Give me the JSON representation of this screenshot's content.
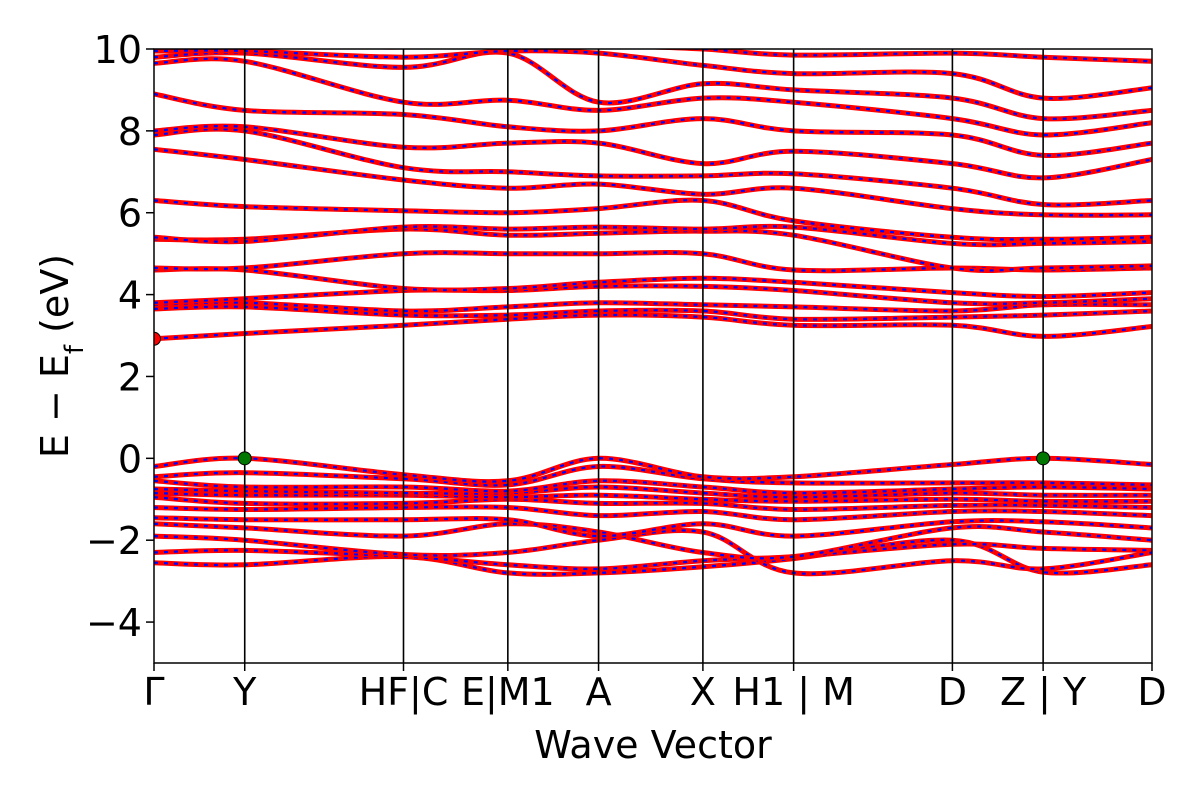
{
  "chart_data": {
    "type": "line",
    "title": "",
    "xlabel": "Wave Vector",
    "ylabel": "E − Ef (eV)",
    "ylim": [
      -5,
      10
    ],
    "xlim": [
      0,
      11
    ],
    "grid": false,
    "legend": "none",
    "y_ticks": [
      -4,
      -2,
      0,
      2,
      4,
      6,
      8,
      10
    ],
    "y_tick_labels": [
      "−4",
      "−2",
      "0",
      "2",
      "4",
      "6",
      "8",
      "10"
    ],
    "high_symmetry_points": [
      {
        "x": 0.0,
        "label": "Γ"
      },
      {
        "x": 1.0,
        "label": "Y"
      },
      {
        "x": 2.75,
        "label": "HF"
      },
      {
        "x": 2.75,
        "label": "C"
      },
      {
        "x": 3.9,
        "label": "E"
      },
      {
        "x": 3.9,
        "label": "M1"
      },
      {
        "x": 4.9,
        "label": "A"
      },
      {
        "x": 6.05,
        "label": "X"
      },
      {
        "x": 7.05,
        "label": "H1"
      },
      {
        "x": 7.05,
        "label": "M"
      },
      {
        "x": 8.8,
        "label": "D"
      },
      {
        "x": 9.8,
        "label": "Z"
      },
      {
        "x": 9.8,
        "label": "Y"
      },
      {
        "x": 11.0,
        "label": "D"
      }
    ],
    "tick_text": [
      {
        "x": 0.0,
        "text": "Γ"
      },
      {
        "x": 1.0,
        "text": "Y"
      },
      {
        "x": 2.75,
        "text": "HF|C"
      },
      {
        "x": 3.9,
        "text": "E|M1"
      },
      {
        "x": 4.9,
        "text": "A"
      },
      {
        "x": 6.05,
        "text": "X"
      },
      {
        "x": 7.05,
        "text": "H1 | M"
      },
      {
        "x": 8.8,
        "text": "D"
      },
      {
        "x": 9.8,
        "text": "Z | Y"
      },
      {
        "x": 11.0,
        "text": "D"
      }
    ],
    "band_colors": {
      "line": "#ff0000",
      "dash": "#0000ff"
    },
    "points": [
      {
        "x": 0.0,
        "y": 2.92,
        "kind": "cbm",
        "color": "#ff0000"
      },
      {
        "x": 1.0,
        "y": 0.0,
        "kind": "vbm",
        "color": "#007700"
      },
      {
        "x": 9.8,
        "y": 0.0,
        "kind": "vbm",
        "color": "#007700"
      }
    ],
    "vertices": [
      0,
      1.0,
      2.75,
      3.9,
      4.9,
      6.05,
      7.05,
      8.8,
      9.8,
      11.0
    ],
    "series": [
      {
        "values": [
          -2.55,
          -2.6,
          -2.4,
          -2.8,
          -2.8,
          -2.65,
          -2.45,
          -2.0,
          -2.78,
          -2.6
        ]
      },
      {
        "values": [
          -2.3,
          -2.25,
          -2.4,
          -2.6,
          -2.7,
          -2.5,
          -2.4,
          -2.1,
          -2.2,
          -2.25
        ]
      },
      {
        "values": [
          -1.9,
          -2.0,
          -2.35,
          -2.3,
          -2.0,
          -1.8,
          -2.8,
          -2.5,
          -2.7,
          -2.3
        ]
      },
      {
        "values": [
          -1.6,
          -1.7,
          -1.9,
          -1.6,
          -1.8,
          -2.3,
          -2.4,
          -1.7,
          -1.8,
          -2.0
        ]
      },
      {
        "values": [
          -1.45,
          -1.5,
          -1.5,
          -1.5,
          -1.9,
          -1.6,
          -1.9,
          -1.55,
          -1.55,
          -1.7
        ]
      },
      {
        "values": [
          -1.2,
          -1.25,
          -1.2,
          -1.2,
          -1.4,
          -1.3,
          -1.5,
          -1.3,
          -1.3,
          -1.4
        ]
      },
      {
        "values": [
          -0.95,
          -1.1,
          -1.1,
          -1.0,
          -1.1,
          -1.1,
          -1.25,
          -1.15,
          -1.15,
          -1.2
        ]
      },
      {
        "values": [
          -0.85,
          -0.9,
          -0.9,
          -0.95,
          -0.9,
          -1.0,
          -1.05,
          -1.0,
          -1.05,
          -1.05
        ]
      },
      {
        "values": [
          -0.75,
          -0.8,
          -0.85,
          -0.85,
          -0.7,
          -0.85,
          -0.95,
          -0.85,
          -0.9,
          -0.9
        ]
      },
      {
        "values": [
          -0.55,
          -0.7,
          -0.7,
          -0.8,
          -0.55,
          -0.7,
          -0.85,
          -0.75,
          -0.7,
          -0.75
        ]
      },
      {
        "values": [
          -0.45,
          -0.35,
          -0.5,
          -0.65,
          -0.2,
          -0.5,
          -0.6,
          -0.6,
          -0.6,
          -0.65
        ]
      },
      {
        "values": [
          -0.2,
          0.0,
          -0.4,
          -0.55,
          0.0,
          -0.45,
          -0.45,
          -0.15,
          0.0,
          -0.15
        ]
      },
      {
        "values": [
          2.92,
          3.05,
          3.25,
          3.4,
          3.5,
          3.45,
          3.25,
          3.25,
          2.98,
          3.22
        ]
      },
      {
        "values": [
          3.65,
          3.7,
          3.5,
          3.5,
          3.6,
          3.6,
          3.4,
          3.45,
          3.5,
          3.6
        ]
      },
      {
        "values": [
          3.75,
          3.8,
          3.6,
          3.7,
          3.8,
          3.75,
          3.7,
          3.6,
          3.75,
          3.75
        ]
      },
      {
        "values": [
          3.8,
          3.9,
          4.1,
          4.1,
          4.2,
          4.2,
          4.1,
          3.8,
          3.8,
          3.9
        ]
      },
      {
        "values": [
          4.6,
          4.6,
          4.15,
          4.15,
          4.3,
          4.4,
          4.3,
          4.05,
          3.95,
          4.05
        ]
      },
      {
        "values": [
          4.65,
          4.65,
          5.0,
          5.0,
          5.0,
          5.0,
          4.6,
          4.65,
          4.6,
          4.65
        ]
      },
      {
        "values": [
          5.35,
          5.35,
          5.6,
          5.45,
          5.5,
          5.55,
          5.45,
          4.65,
          4.65,
          4.7
        ]
      },
      {
        "values": [
          5.4,
          5.3,
          5.65,
          5.6,
          5.65,
          5.6,
          5.65,
          5.25,
          5.25,
          5.3
        ]
      },
      {
        "values": [
          6.3,
          6.15,
          6.05,
          6.0,
          6.1,
          6.3,
          5.8,
          5.4,
          5.35,
          5.4
        ]
      },
      {
        "values": [
          7.55,
          7.3,
          6.8,
          6.6,
          6.7,
          6.45,
          6.6,
          6.1,
          5.95,
          5.95
        ]
      },
      {
        "values": [
          7.9,
          8.0,
          7.1,
          7.0,
          6.9,
          6.9,
          6.95,
          6.6,
          6.2,
          6.3
        ]
      },
      {
        "values": [
          8.0,
          8.1,
          7.6,
          7.7,
          7.7,
          7.2,
          7.5,
          7.2,
          6.85,
          7.3
        ]
      },
      {
        "values": [
          8.9,
          8.5,
          8.4,
          8.1,
          8.0,
          8.3,
          8.0,
          7.9,
          7.4,
          7.7
        ]
      },
      {
        "values": [
          9.65,
          9.7,
          8.7,
          8.75,
          8.5,
          8.8,
          8.7,
          8.3,
          7.9,
          8.2
        ]
      },
      {
        "values": [
          9.8,
          9.9,
          9.55,
          9.9,
          8.7,
          9.15,
          9.0,
          8.8,
          8.3,
          8.5
        ]
      },
      {
        "values": [
          9.95,
          9.95,
          9.8,
          9.95,
          9.9,
          9.6,
          9.4,
          9.4,
          8.8,
          9.05
        ]
      },
      {
        "values": [
          10.1,
          10.1,
          10.05,
          10.2,
          10.1,
          10.0,
          9.85,
          9.9,
          9.8,
          9.7
        ]
      }
    ]
  }
}
